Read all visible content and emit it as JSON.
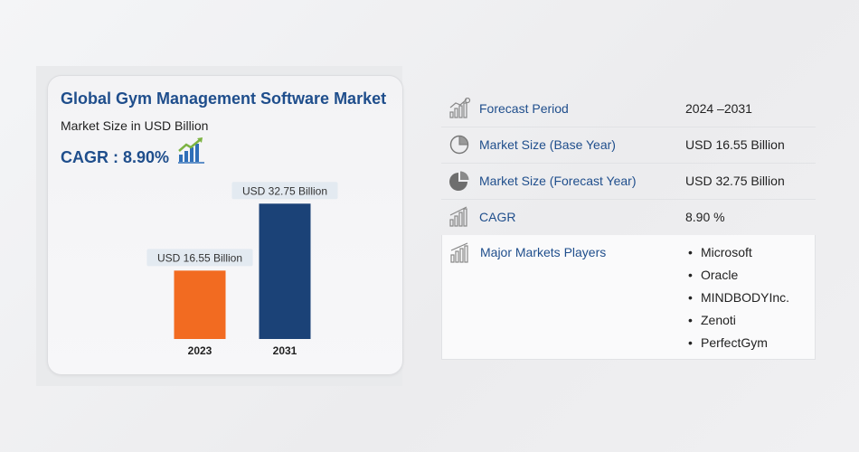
{
  "card": {
    "title": "Global Gym Management Software Market",
    "subtitle": "Market Size in USD Billion",
    "cagr": "CAGR : 8.90%"
  },
  "chart_data": {
    "type": "bar",
    "title": "Global Gym Management Software Market",
    "ylabel": "Market Size in USD Billion",
    "categories": [
      "2023",
      "2031"
    ],
    "values": [
      16.55,
      32.75
    ],
    "data_labels": [
      "USD 16.55 Billion",
      "USD 32.75 Billion"
    ],
    "colors": [
      "#f26b21",
      "#1b4277"
    ],
    "ylim": [
      0,
      35
    ],
    "grid": false
  },
  "table": {
    "rows": [
      {
        "icon": "forecast-chart-icon",
        "label": "Forecast Period",
        "value": "2024 –2031"
      },
      {
        "icon": "pie-outline-icon",
        "label": "Market Size (Base Year)",
        "value": "USD 16.55 Billion"
      },
      {
        "icon": "pie-filled-icon",
        "label": "Market Size (Forecast Year)",
        "value": "USD 32.75 Billion"
      },
      {
        "icon": "cagr-bars-icon",
        "label": "CAGR",
        "value": "8.90 %"
      }
    ],
    "players": {
      "icon": "players-bars-icon",
      "label": "Major Markets Players",
      "items": [
        "Microsoft",
        "Oracle",
        "MINDBODYInc.",
        "Zenoti",
        "PerfectGym"
      ]
    }
  }
}
